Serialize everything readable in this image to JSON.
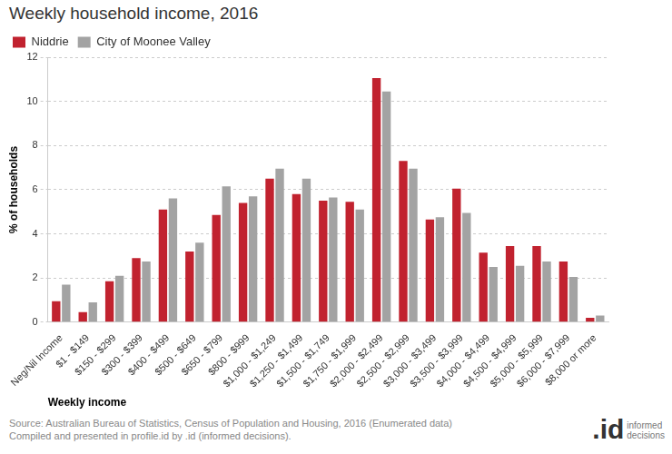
{
  "chart_data": {
    "type": "bar",
    "title": "Weekly household income, 2016",
    "x_label": "Weekly income",
    "y_label": "% of households",
    "categories": [
      "Neg/Nil Income",
      "$1 - $149",
      "$150 - $299",
      "$300 - $399",
      "$400 - $499",
      "$500 - $649",
      "$650 - $799",
      "$800 - $999",
      "$1,000 - $1,249",
      "$1,250 - $1,499",
      "$1,500 - $1,749",
      "$1,750 - $1,999",
      "$2,000 - $2,499",
      "$2,500 - $2,999",
      "$3,000 - $3,499",
      "$3,500 - $3,999",
      "$4,000 - $4,499",
      "$4,500 - $4,999",
      "$5,000 - $5,999",
      "$6,000 - $7,999",
      "$8,000 or more"
    ],
    "series": [
      {
        "name": "Niddrie",
        "color": "#c1222f",
        "values": [
          0.95,
          0.45,
          1.85,
          2.9,
          5.1,
          3.2,
          4.85,
          5.4,
          6.5,
          5.8,
          5.5,
          5.45,
          11.05,
          7.3,
          4.65,
          6.05,
          3.15,
          3.45,
          3.45,
          2.75,
          0.2
        ]
      },
      {
        "name": "City of Moonee Valley",
        "color": "#a3a3a3",
        "values": [
          1.7,
          0.9,
          2.1,
          2.75,
          5.6,
          3.6,
          6.15,
          5.7,
          6.95,
          6.5,
          5.65,
          5.1,
          10.45,
          6.95,
          4.75,
          4.95,
          2.5,
          2.55,
          2.75,
          2.05,
          0.3
        ]
      }
    ],
    "ylim": [
      0,
      12
    ],
    "yticks": [
      0,
      2,
      4,
      6,
      8,
      10,
      12
    ],
    "grid": true,
    "legend": "top-left",
    "source": [
      "Source: Australian Bureau of Statistics, Census of Population and Housing, 2016 (Enumerated data)",
      "Compiled and presented in profile.id by .id (informed decisions)."
    ],
    "logo": [
      ".id",
      "informed",
      "decisions"
    ]
  }
}
